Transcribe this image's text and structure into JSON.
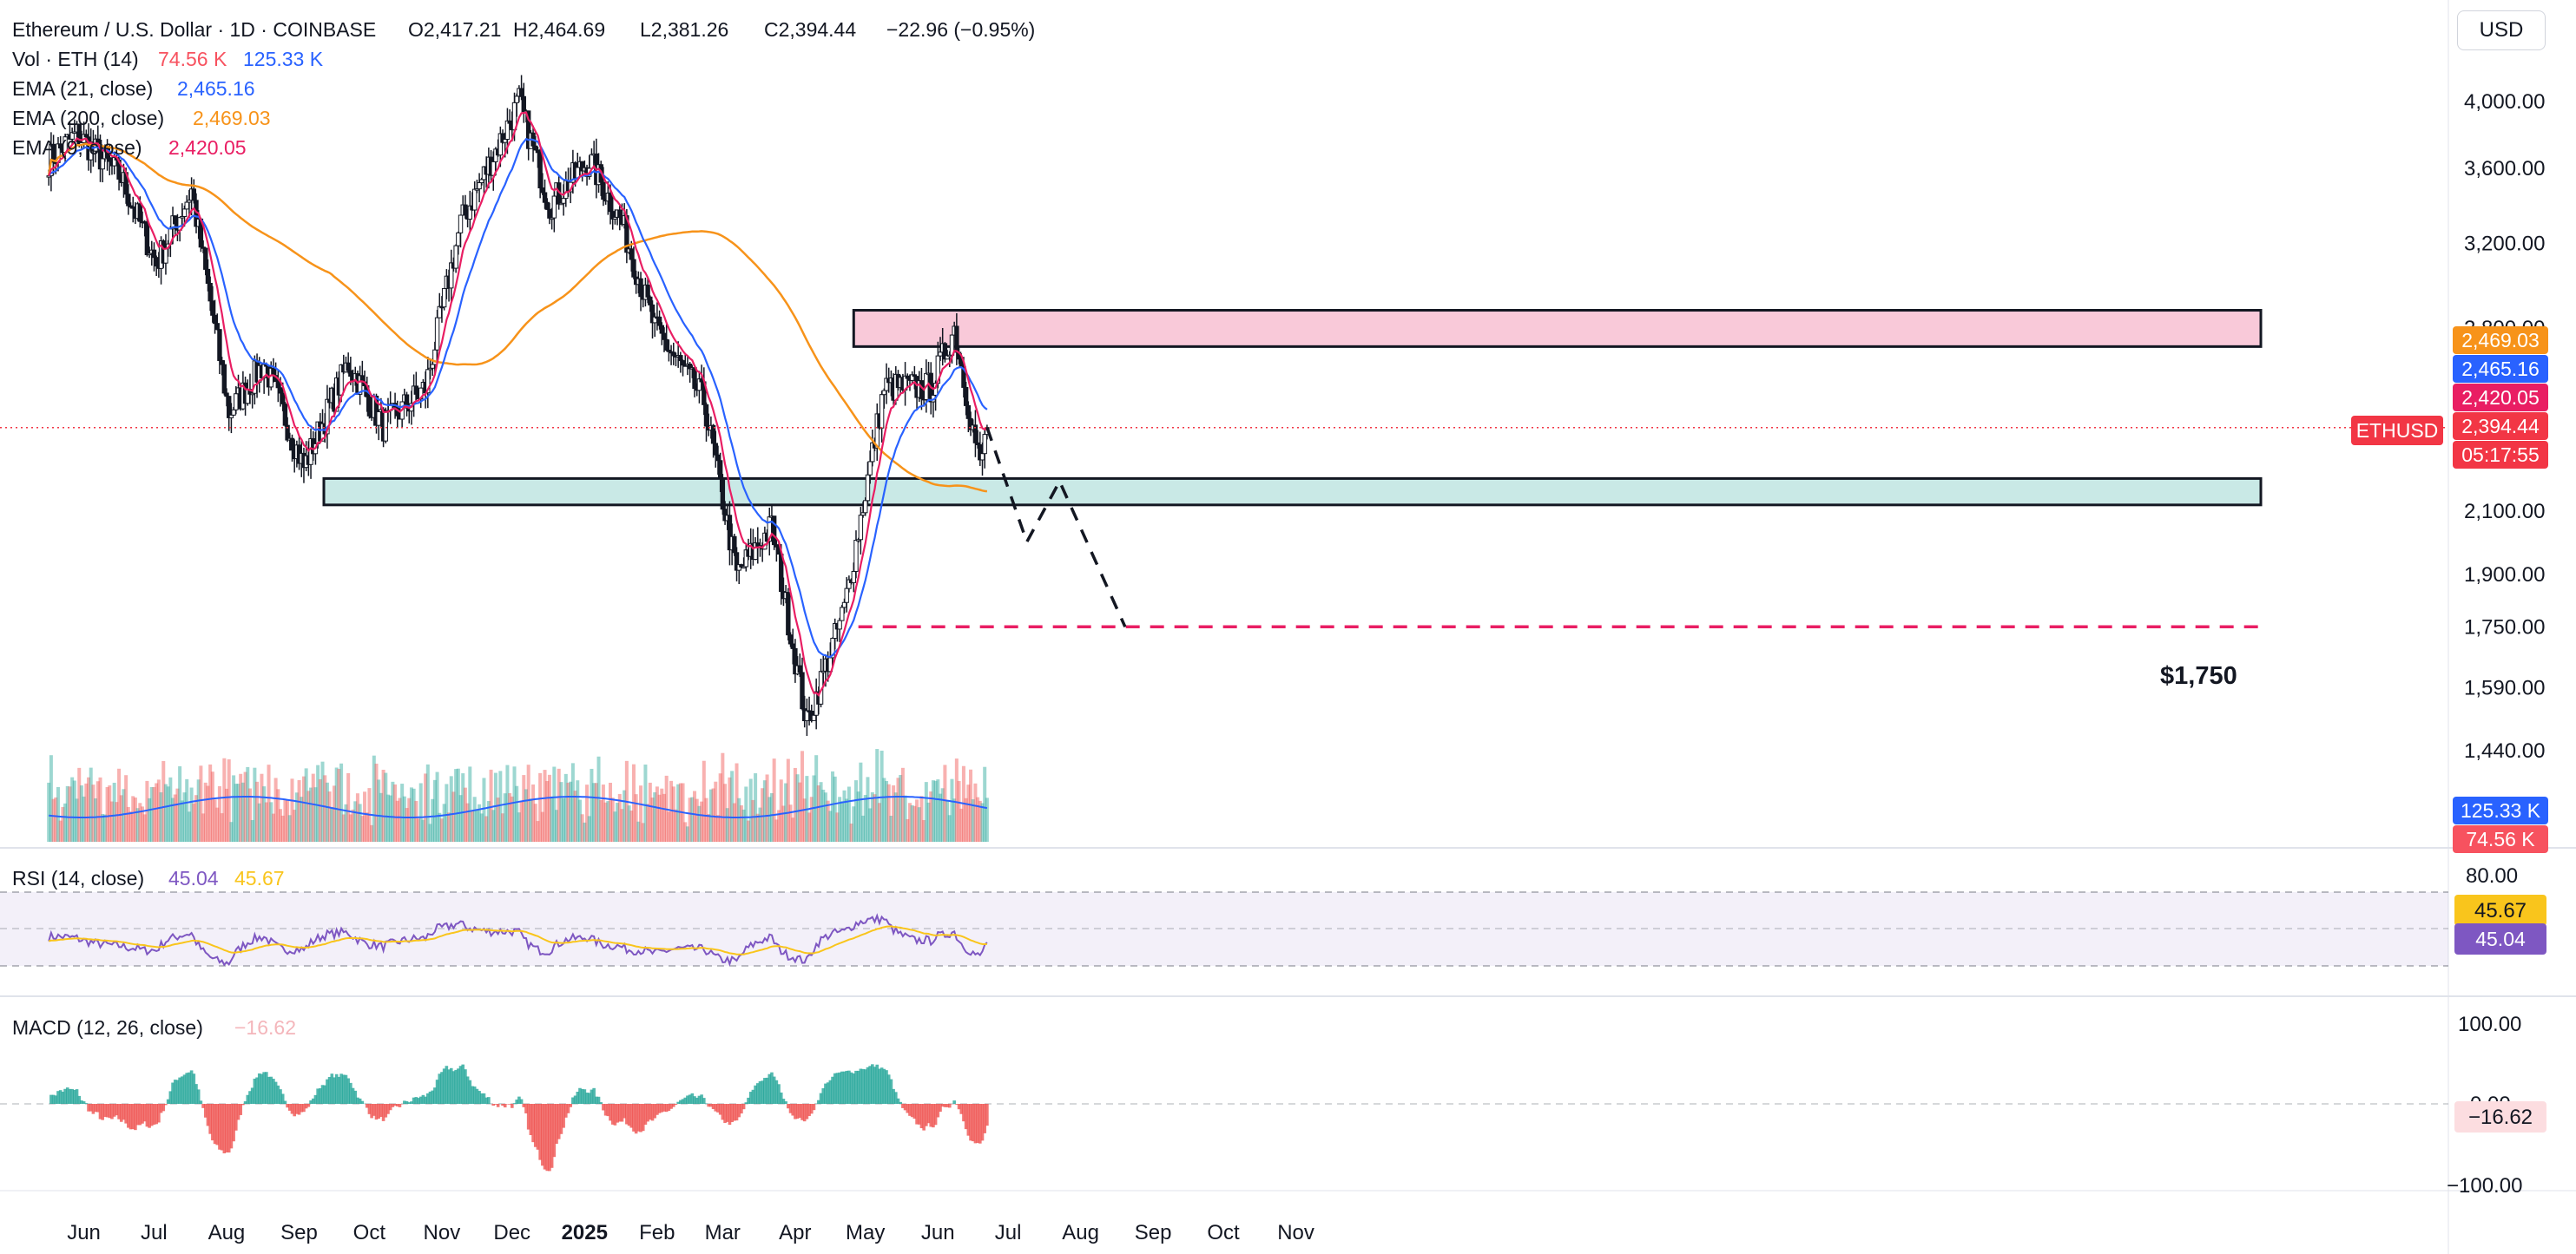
{
  "header": {
    "symbol": "Ethereum / U.S. Dollar · 1D · COINBASE",
    "o": "O2,417.21",
    "h": "H2,464.69",
    "l": "L2,381.26",
    "c": "C2,394.44",
    "change": "−22.96 (−0.95%)"
  },
  "legend": {
    "vol": {
      "label": "Vol · ETH (14)",
      "v1": "74.56 K",
      "v2": "125.33 K"
    },
    "ema21": {
      "label": "EMA (21, close)",
      "value": "2,465.16"
    },
    "ema200": {
      "label": "EMA (200, close)",
      "value": "2,469.03"
    },
    "ema9": {
      "label": "EMA (9, close)",
      "value": "2,420.05"
    }
  },
  "currency": "USD",
  "price_axis": {
    "labels": [
      "4,000.00",
      "3,600.00",
      "3,200.00",
      "2,800.00",
      "2,100.00",
      "1,900.00",
      "1,750.00",
      "1,590.00",
      "1,440.00"
    ]
  },
  "price_tags": [
    {
      "text": "2,469.03",
      "color": "#f7931a"
    },
    {
      "text": "2,465.16",
      "color": "#2962ff"
    },
    {
      "text": "2,420.05",
      "color": "#e91e63"
    },
    {
      "text": "2,394.44",
      "color": "#f23645"
    },
    {
      "text": "05:17:55",
      "color": "#f23645"
    }
  ],
  "symbol_tag": "ETHUSD",
  "volume_tags": [
    {
      "text": "125.33 K",
      "color": "#2962ff"
    },
    {
      "text": "74.56 K",
      "color": "#f7525f"
    }
  ],
  "target_label": "$1,750",
  "rsi": {
    "label": "RSI (14, close)",
    "v1": "45.04",
    "v2": "45.67",
    "axis": [
      "80.00"
    ],
    "tag_ma": "45.67",
    "tag_rsi": "45.04"
  },
  "macd": {
    "label": "MACD (12, 26, close)",
    "value": "−16.62",
    "axis": [
      "100.00",
      "0.00",
      "−100.00"
    ],
    "tag": "−16.62"
  },
  "time_axis": [
    "Jun",
    "Jul",
    "Aug",
    "Sep",
    "Oct",
    "Nov",
    "Dec",
    "2025",
    "Feb",
    "Mar",
    "Apr",
    "May",
    "Jun",
    "Jul",
    "Aug",
    "Sep",
    "Oct",
    "Nov"
  ],
  "colors": {
    "up": "#26a69a",
    "down": "#ef5350",
    "ema9": "#e91e63",
    "ema21": "#2962ff",
    "ema200": "#f7931a",
    "rsi": "#7e57c2",
    "rsi_ma": "#f9c51c",
    "support_zone": "#b2dfdb",
    "resistance_zone": "#f8bbd0",
    "target_line": "#e91e63"
  },
  "chart_data": {
    "type": "candlestick",
    "symbol": "ETHUSD",
    "scale": "log",
    "ylim": [
      1350,
      4300
    ],
    "timeframe": "1D",
    "monthly_path": [
      {
        "x": "2024-05-20",
        "y": 3650
      },
      {
        "x": "2024-06-01",
        "y": 3800
      },
      {
        "x": "2024-06-20",
        "y": 3550
      },
      {
        "x": "2024-07-05",
        "y": 3100
      },
      {
        "x": "2024-07-20",
        "y": 3480
      },
      {
        "x": "2024-08-05",
        "y": 2450
      },
      {
        "x": "2024-08-20",
        "y": 2650
      },
      {
        "x": "2024-09-06",
        "y": 2250
      },
      {
        "x": "2024-09-25",
        "y": 2650
      },
      {
        "x": "2024-10-10",
        "y": 2400
      },
      {
        "x": "2024-10-28",
        "y": 2550
      },
      {
        "x": "2024-11-12",
        "y": 3300
      },
      {
        "x": "2024-12-07",
        "y": 4000
      },
      {
        "x": "2024-12-20",
        "y": 3400
      },
      {
        "x": "2025-01-06",
        "y": 3650
      },
      {
        "x": "2025-01-20",
        "y": 3300
      },
      {
        "x": "2025-02-03",
        "y": 2800
      },
      {
        "x": "2025-02-24",
        "y": 2500
      },
      {
        "x": "2025-03-10",
        "y": 1900
      },
      {
        "x": "2025-03-25",
        "y": 2050
      },
      {
        "x": "2025-04-09",
        "y": 1500
      },
      {
        "x": "2025-04-25",
        "y": 1800
      },
      {
        "x": "2025-05-12",
        "y": 2550
      },
      {
        "x": "2025-06-01",
        "y": 2550
      },
      {
        "x": "2025-06-11",
        "y": 2800
      },
      {
        "x": "2025-06-22",
        "y": 2250
      },
      {
        "x": "2025-06-25",
        "y": 2394.44
      }
    ],
    "zones": [
      {
        "name": "support",
        "from_price": 2120,
        "to_price": 2210,
        "from": "2024-08-01",
        "to": "2025-07-31"
      },
      {
        "name": "resistance",
        "from_price": 2720,
        "to_price": 2880,
        "from": "2025-04-29",
        "to": "2025-07-31"
      }
    ],
    "target_price": 1750,
    "projection": [
      {
        "x": "2025-06-25",
        "y": 2394.44
      },
      {
        "x": "2025-07-12",
        "y": 2000
      },
      {
        "x": "2025-07-26",
        "y": 2200
      },
      {
        "x": "2025-08-23",
        "y": 1750
      }
    ]
  }
}
